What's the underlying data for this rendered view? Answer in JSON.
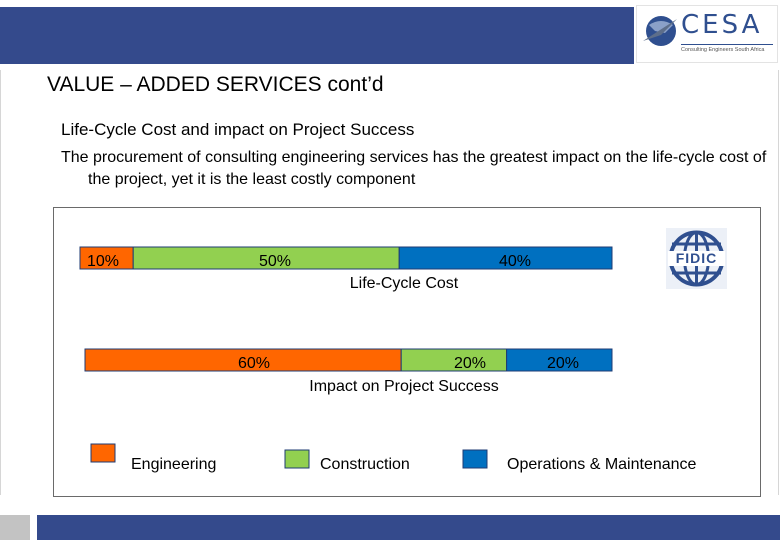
{
  "header": {
    "logo_text": "CESA",
    "logo_tagline": "Consulting Engineers South Africa",
    "partner_logo_text": "FIDIC"
  },
  "title": "VALUE – ADDED SERVICES cont’d",
  "subtitle": "Life-Cycle Cost and impact on Project Success",
  "paragraph": "The procurement of consulting engineering services has the greatest impact on the life-cycle cost of the project, yet it is the least costly component",
  "chart_data": {
    "type": "bar",
    "orientation": "horizontal",
    "stacked": true,
    "normalized_percent": true,
    "categories": [
      "Life-Cycle Cost",
      "Impact on Project Success"
    ],
    "series": [
      {
        "name": "Engineering",
        "values": [
          10,
          60
        ],
        "color": "#ff6600",
        "value_labels": [
          "10%",
          "60%"
        ]
      },
      {
        "name": "Construction",
        "values": [
          50,
          20
        ],
        "color": "#92d050",
        "value_labels": [
          "50%",
          "20%"
        ]
      },
      {
        "name": "Operations & Maintenance",
        "values": [
          40,
          20
        ],
        "color": "#0070c0",
        "value_labels": [
          "40%",
          "20%"
        ]
      }
    ],
    "xlim": [
      0,
      100
    ],
    "grid": false,
    "legend_position": "bottom"
  }
}
